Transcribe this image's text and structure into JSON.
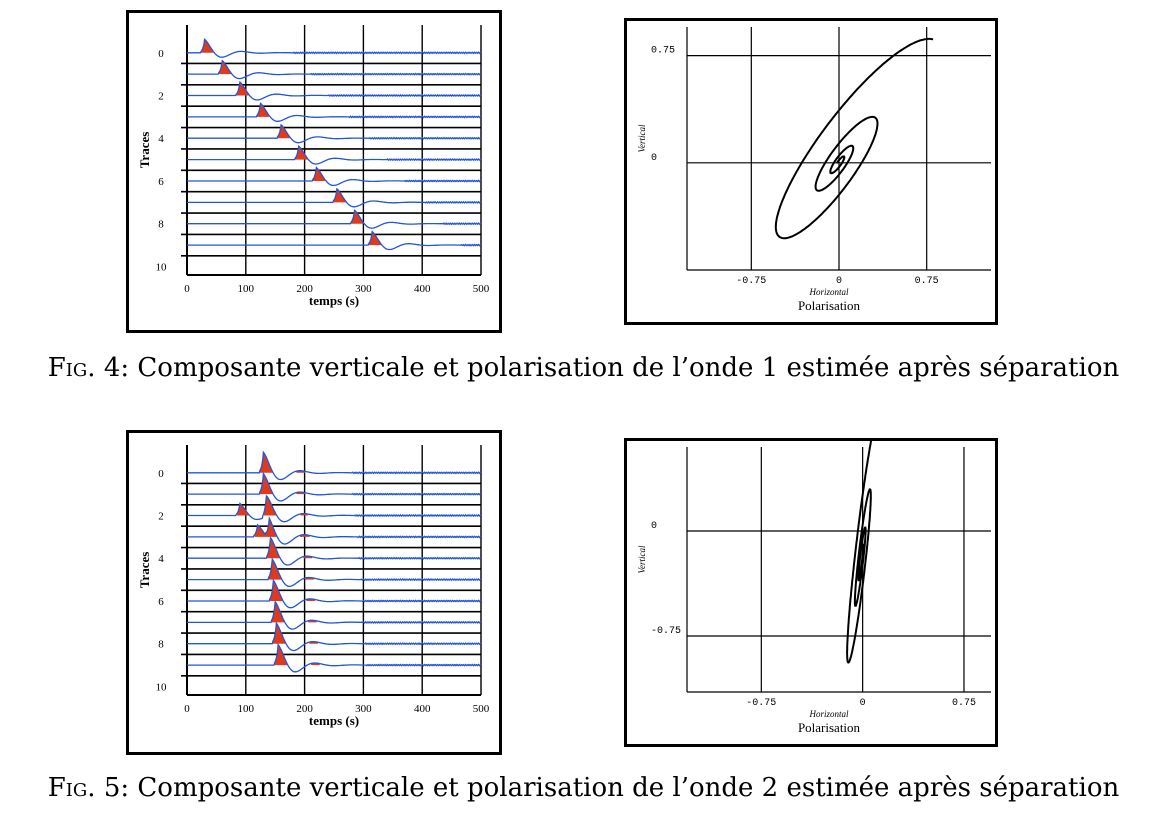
{
  "figures": [
    {
      "fig_label": "Fig. 4:",
      "caption": "Composante verticale et polarisation de l’onde 1 estimée après séparation",
      "colors": {
        "trace": "#2255dd",
        "fill": "#e03a1a",
        "axis": "#000000",
        "grid": "#000000",
        "hodogram": "#000000"
      },
      "chart_data": [
        {
          "type": "line",
          "title": "",
          "xlabel": "temps (s)",
          "ylabel": "Traces",
          "xlim": [
            0,
            500
          ],
          "ylim": [
            10,
            -1
          ],
          "x_ticks": [
            "0",
            "100",
            "200",
            "300",
            "400",
            "500"
          ],
          "y_ticks": [
            "0",
            "2",
            "4",
            "6",
            "8",
            "10"
          ],
          "grid": true,
          "trace_count": 10,
          "arrival_times_s": [
            30,
            60,
            90,
            125,
            160,
            190,
            220,
            255,
            285,
            315
          ],
          "secondary_arrival_times_s": [
            null,
            null,
            null,
            null,
            null,
            null,
            null,
            null,
            null,
            null
          ],
          "pulse_amplitude_traces": 1.05
        },
        {
          "type": "line",
          "title": "Polarisation",
          "xlabel": "Horizontal",
          "ylabel": "Vertical",
          "xlim": [
            -1.3,
            1.3
          ],
          "ylim": [
            -0.75,
            0.95
          ],
          "x_ticks": [
            "-0.75",
            "0",
            "0.75"
          ],
          "y_ticks": [
            "0",
            "0.75"
          ],
          "x_tick_values": [
            -0.75,
            0,
            0.75
          ],
          "y_tick_values": [
            0,
            0.75
          ],
          "grid": true,
          "ellipse_tilt_deg": 47,
          "semi_major": 1.18,
          "semi_minor": 0.32,
          "decay": 0.24,
          "turns": 3.3,
          "centre": [
            0.0,
            0.0
          ]
        }
      ]
    },
    {
      "fig_label": "Fig. 5:",
      "caption": "Composante verticale et polarisation de l’onde 2 estimée après séparation",
      "colors": {
        "trace": "#2255dd",
        "fill": "#e03a1a",
        "axis": "#000000",
        "grid": "#000000",
        "hodogram": "#000000"
      },
      "chart_data": [
        {
          "type": "line",
          "title": "",
          "xlabel": "temps (s)",
          "ylabel": "Traces",
          "xlim": [
            0,
            500
          ],
          "ylim": [
            10,
            -1
          ],
          "x_ticks": [
            "0",
            "100",
            "200",
            "300",
            "400",
            "500"
          ],
          "y_ticks": [
            "0",
            "2",
            "4",
            "6",
            "8",
            "10"
          ],
          "grid": true,
          "trace_count": 10,
          "arrival_times_s": [
            130,
            130,
            135,
            140,
            142,
            145,
            147,
            150,
            152,
            155
          ],
          "secondary_arrival_times_s": [
            null,
            null,
            90,
            120,
            null,
            null,
            null,
            null,
            null,
            null
          ],
          "pulse_amplitude_traces": 1.6
        },
        {
          "type": "line",
          "title": "Polarisation",
          "xlabel": "Horizontal",
          "ylabel": "Vertical",
          "xlim": [
            -1.3,
            0.95
          ],
          "ylim": [
            -1.15,
            0.6
          ],
          "x_ticks": [
            "-0.75",
            "0",
            "0.75"
          ],
          "y_ticks": [
            "0",
            "-0.75"
          ],
          "x_tick_values": [
            -0.75,
            0,
            0.75
          ],
          "y_tick_values": [
            0,
            -0.75
          ],
          "grid": true,
          "ellipse_tilt_deg": 83,
          "semi_major": 1.1,
          "semi_minor": 0.06,
          "decay": 0.3,
          "turns": 3.0,
          "centre": [
            -0.01,
            -0.2
          ]
        }
      ]
    }
  ]
}
